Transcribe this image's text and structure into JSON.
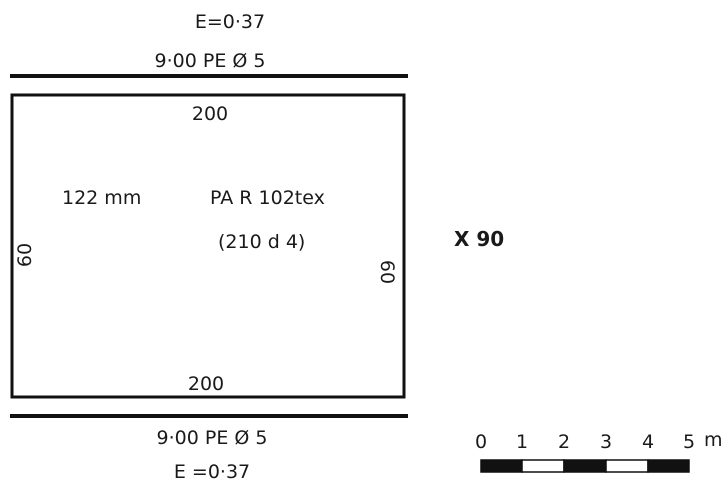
{
  "net_panel": {
    "top_rope": {
      "stretch_label": "E=0·37",
      "rope_label": "9·00 PE Ø 5"
    },
    "bottom_rope": {
      "rope_label": "9·00 PE Ø 5",
      "stretch_label": "E =0·37"
    },
    "mesh_top_label": "200",
    "mesh_bottom_label": "200",
    "mesh_left_label": "60",
    "mesh_right_label": "60",
    "mesh_size_label": "122 mm",
    "material_label": "PA R 102tex",
    "twine_label": "(210 d 4)",
    "quantity_label": "X 90"
  },
  "scale_bar": {
    "ticks": [
      "0",
      "1",
      "2",
      "3",
      "4",
      "5"
    ],
    "unit": "m"
  }
}
